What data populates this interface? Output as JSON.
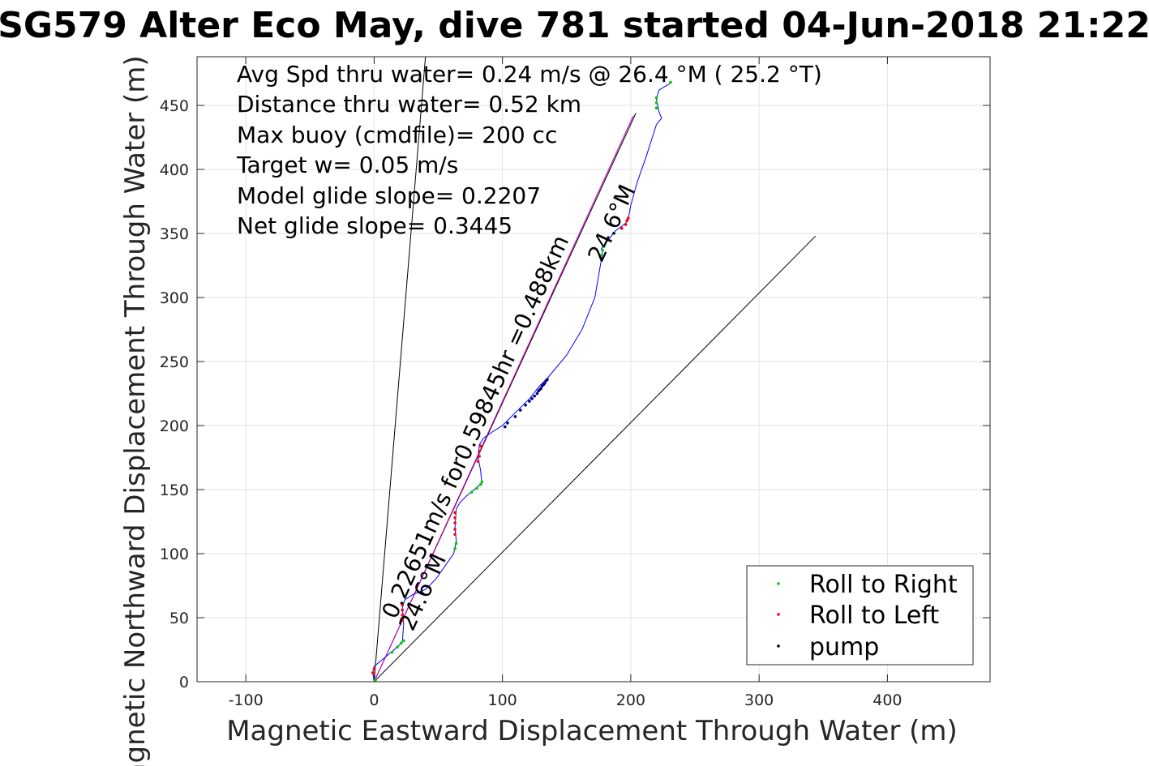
{
  "chart_data": {
    "type": "line",
    "title": "SG579 Alter Eco May, dive 781 started 04-Jun-2018 21:22",
    "xlabel": "Magnetic Eastward Displacement Through Water (m)",
    "ylabel": "Magnetic Northward Displacement Through Water (m)",
    "xlim": [
      -138,
      480
    ],
    "ylim": [
      0,
      488
    ],
    "xticks": [
      -100,
      0,
      100,
      200,
      300,
      400
    ],
    "yticks": [
      0,
      50,
      100,
      150,
      200,
      250,
      300,
      350,
      400,
      450
    ],
    "grid": true,
    "legend_position": "bottom-right",
    "annotations": [
      "Avg Spd thru water=  0.24 m/s @  26.4 °M ( 25.2 °T)",
      "Distance thru water=  0.52 km",
      "Max buoy (cmdfile)= 200 cc",
      "Target w= 0.05 m/s",
      "Model glide slope= 0.2207",
      "Net glide slope= 0.3445"
    ],
    "line_labels": {
      "speed": "0.22651m/s for0.59845hr =0.488km",
      "heading_lower": "24.6°M",
      "heading_upper": "24.6°M"
    },
    "reference_lines": [
      {
        "from": [
          0,
          0
        ],
        "to": [
          40,
          488
        ],
        "color": "#000000"
      },
      {
        "from": [
          0,
          0
        ],
        "to": [
          344,
          348
        ],
        "color": "#000000"
      },
      {
        "from": [
          0,
          0
        ],
        "to": [
          204,
          444
        ],
        "color": "#000000"
      },
      {
        "from": [
          0,
          0
        ],
        "to": [
          202,
          442
        ],
        "color": "#cc00cc"
      }
    ],
    "series": [
      {
        "name": "",
        "color": "#0000ff",
        "x": [
          0,
          -1,
          0,
          5,
          12,
          18,
          22,
          23,
          22,
          24,
          30,
          40,
          48,
          55,
          62,
          64,
          63,
          64,
          67,
          72,
          78,
          84,
          83,
          81,
          82,
          85,
          92,
          100,
          108,
          115,
          122,
          128,
          135,
          150,
          162,
          172,
          178,
          177,
          180,
          188,
          196,
          198,
          200,
          205,
          212,
          220,
          224,
          222,
          220,
          222,
          232
        ],
        "y": [
          0,
          7,
          12,
          16,
          22,
          27,
          31,
          45,
          58,
          64,
          68,
          72,
          80,
          90,
          100,
          110,
          120,
          135,
          140,
          145,
          150,
          155,
          165,
          175,
          185,
          190,
          195,
          200,
          208,
          215,
          222,
          230,
          237,
          255,
          275,
          300,
          335,
          338,
          342,
          352,
          358,
          361,
          372,
          390,
          410,
          435,
          440,
          445,
          455,
          462,
          468
        ]
      }
    ],
    "markers": {
      "roll_right": {
        "label": "Roll to Right",
        "color": "#00cc00",
        "points": [
          [
            1,
            1
          ],
          [
            14,
            23
          ],
          [
            18,
            27
          ],
          [
            21,
            30
          ],
          [
            23,
            32
          ],
          [
            63,
            104
          ],
          [
            64,
            108
          ],
          [
            76,
            148
          ],
          [
            80,
            151
          ],
          [
            83,
            154
          ],
          [
            84,
            156
          ],
          [
            177,
            333
          ],
          [
            178,
            337
          ],
          [
            179,
            340
          ],
          [
            220,
            448
          ],
          [
            220,
            452
          ],
          [
            220,
            456
          ],
          [
            231,
            468
          ]
        ]
      },
      "roll_left": {
        "label": "Roll to Left",
        "color": "#ff0000",
        "points": [
          [
            -1,
            7
          ],
          [
            0,
            10
          ],
          [
            22,
            48
          ],
          [
            22,
            52
          ],
          [
            22,
            56
          ],
          [
            22,
            60
          ],
          [
            63,
            115
          ],
          [
            63,
            119
          ],
          [
            63,
            124
          ],
          [
            63,
            128
          ],
          [
            63,
            132
          ],
          [
            81,
            172
          ],
          [
            82,
            176
          ],
          [
            82,
            180
          ],
          [
            83,
            184
          ],
          [
            193,
            354
          ],
          [
            196,
            357
          ],
          [
            197,
            360
          ],
          [
            198,
            362
          ]
        ]
      },
      "pump": {
        "label": "pump",
        "color": "#000080",
        "points": [
          [
            102,
            199
          ],
          [
            104,
            202
          ],
          [
            110,
            207
          ],
          [
            114,
            212
          ],
          [
            118,
            216
          ],
          [
            121,
            219
          ],
          [
            123,
            221
          ],
          [
            125,
            223
          ],
          [
            127,
            225
          ],
          [
            128,
            227
          ],
          [
            129,
            228
          ],
          [
            130,
            229
          ],
          [
            131,
            231
          ],
          [
            132,
            232
          ],
          [
            133,
            233
          ],
          [
            134,
            235
          ],
          [
            135,
            236
          ]
        ]
      }
    }
  }
}
